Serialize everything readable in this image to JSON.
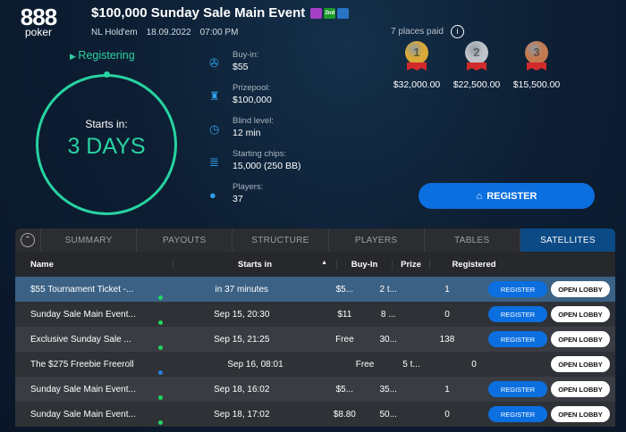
{
  "brand": {
    "logo_top": "888",
    "logo_bottom": "poker"
  },
  "header": {
    "title": "$100,000 Sunday Sale Main Event",
    "game": "NL Hold'em",
    "date": "18.09.2022",
    "time": "07:00 PM",
    "badges": [
      {
        "icon": "video-icon",
        "text": "",
        "color": "#a43fc6"
      },
      {
        "icon": "second-chance-icon",
        "text": "2nd",
        "color": "#1c9b2c"
      },
      {
        "icon": "calendar-icon",
        "text": "",
        "color": "#2a74c6"
      }
    ]
  },
  "status": {
    "state": "Registering",
    "starts_label": "Starts in:",
    "starts_value": "3 DAYS",
    "accent": "#27d3a0"
  },
  "info": [
    {
      "icon": "chip-icon",
      "label": "Buy-in:",
      "value": "$55"
    },
    {
      "icon": "trophy-icon",
      "label": "Prizepool:",
      "value": "$100,000"
    },
    {
      "icon": "clock-icon",
      "label": "Blind level:",
      "value": "12 min"
    },
    {
      "icon": "chips-stack-icon",
      "label": "Starting chips:",
      "value": "15,000 (250 BB)"
    },
    {
      "icon": "user-icon",
      "label": "Players:",
      "value": "37"
    }
  ],
  "payouts": {
    "places_paid": "7 places paid",
    "medals": [
      {
        "place": "1",
        "amount": "$32,000.00",
        "color": "#d9a836"
      },
      {
        "place": "2",
        "amount": "$22,500.00",
        "color": "#bfc3c8"
      },
      {
        "place": "3",
        "amount": "$15,500.00",
        "color": "#c47a4f"
      }
    ]
  },
  "register_button": "REGISTER",
  "tabs": [
    "SUMMARY",
    "PAYOUTS",
    "STRUCTURE",
    "PLAYERS",
    "TABLES",
    "SATELLITES"
  ],
  "active_tab": "SATELLITES",
  "table": {
    "columns": [
      "Name",
      "Starts in",
      "Buy-In",
      "Prize",
      "Registered"
    ],
    "rows": [
      {
        "name": "$55 Tournament Ticket -...",
        "status": "#1ed760",
        "starts": "in 37 minutes",
        "buyin": "$5...",
        "prize": "2 t...",
        "registered": "1",
        "register": "REGISTER",
        "lobby": "OPEN LOBBY"
      },
      {
        "name": "Sunday Sale Main Event...",
        "status": "#1ed760",
        "starts": "Sep 15, 20:30",
        "buyin": "$11",
        "prize": "8 ...",
        "registered": "0",
        "register": "REGISTER",
        "lobby": "OPEN LOBBY"
      },
      {
        "name": "Exclusive Sunday Sale ...",
        "status": "#1ed760",
        "starts": "Sep 15, 21:25",
        "buyin": "Free",
        "prize": "30...",
        "registered": "138",
        "register": "REGISTER",
        "lobby": "OPEN LOBBY"
      },
      {
        "name": "The $275 Freebie Freeroll",
        "status": "#2a7de1",
        "starts": "Sep 16, 08:01",
        "buyin": "Free",
        "prize": "5 t...",
        "registered": "0",
        "register": "",
        "lobby": "OPEN LOBBY"
      },
      {
        "name": "Sunday Sale Main Event...",
        "status": "#1ed760",
        "starts": "Sep 18, 16:02",
        "buyin": "$5...",
        "prize": "35...",
        "registered": "1",
        "register": "REGISTER",
        "lobby": "OPEN LOBBY"
      },
      {
        "name": "Sunday Sale Main Event...",
        "status": "#1ed760",
        "starts": "Sep 18, 17:02",
        "buyin": "$8.80",
        "prize": "50...",
        "registered": "0",
        "register": "REGISTER",
        "lobby": "OPEN LOBBY"
      }
    ]
  }
}
